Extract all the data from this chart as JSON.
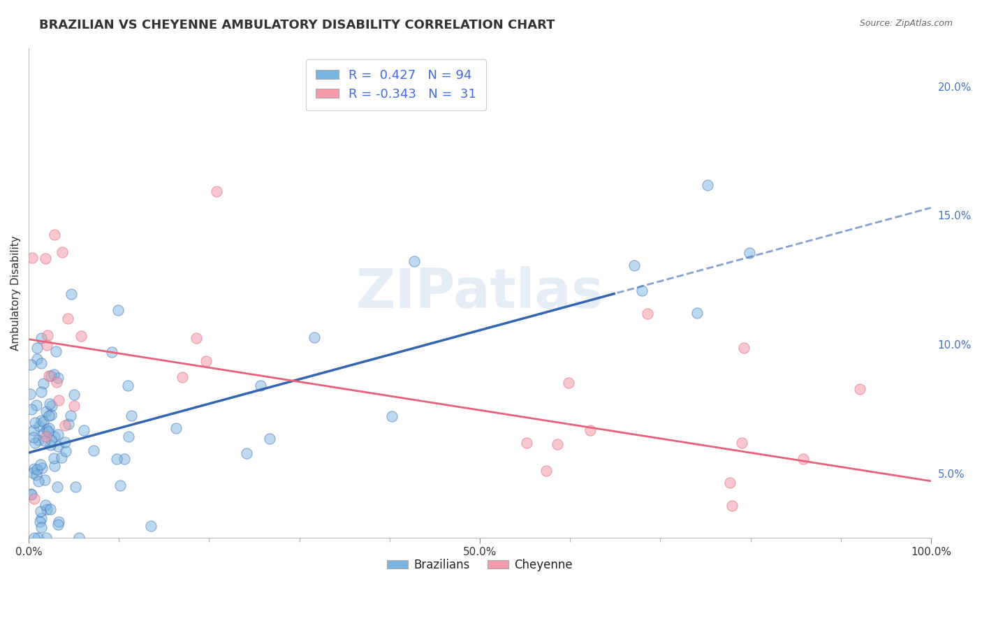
{
  "title": "BRAZILIAN VS CHEYENNE AMBULATORY DISABILITY CORRELATION CHART",
  "source_text": "Source: ZipAtlas.com",
  "ylabel": "Ambulatory Disability",
  "xlim": [
    0,
    1.0
  ],
  "ylim": [
    0.025,
    0.215
  ],
  "xticks": [
    0.0,
    0.5,
    1.0
  ],
  "xtick_labels": [
    "0.0%",
    "50.0%",
    "100.0%"
  ],
  "ytick_labels": [
    "5.0%",
    "10.0%",
    "15.0%",
    "20.0%"
  ],
  "yticks": [
    0.05,
    0.1,
    0.15,
    0.2
  ],
  "brazilian_R": 0.427,
  "brazilian_N": 94,
  "cheyenne_R": -0.343,
  "cheyenne_N": 31,
  "brazilian_color": "#7ab4e0",
  "cheyenne_color": "#f49aaa",
  "brazilian_line_color": "#3465b0",
  "cheyenne_line_color": "#e8607a",
  "watermark_color": "#d5e4f0",
  "title_fontsize": 13,
  "axis_label_fontsize": 11,
  "tick_fontsize": 11,
  "legend_fontsize": 13,
  "background_color": "#ffffff",
  "grid_color": "#cccccc",
  "braz_line_intercept": 0.058,
  "braz_line_slope": 0.095,
  "chey_line_intercept": 0.102,
  "chey_line_slope": -0.055
}
